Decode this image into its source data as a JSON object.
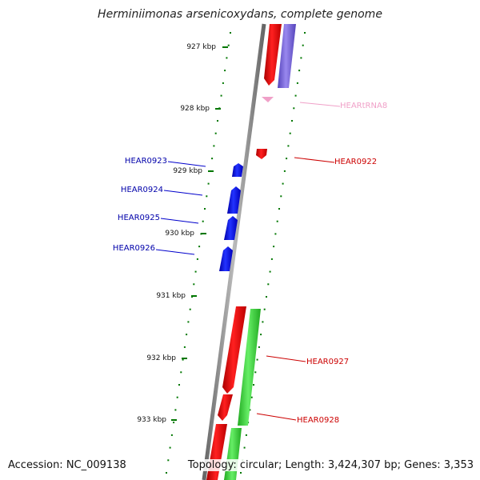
{
  "title": "Herminiimonas arsenicoxydans, complete genome",
  "accession_label": "Accession: NC_009138",
  "topology_label": "Topology: circular; Length: 3,424,307 bp; Genes: 3,353",
  "ticks": [
    "927 kbp",
    "928 kbp",
    "929 kbp",
    "930 kbp",
    "931 kbp",
    "932 kbp",
    "933 kbp"
  ],
  "genes": [
    {
      "label": "HEARtRNA8",
      "color": "#f0a0c8"
    },
    {
      "label": "HEAR0922",
      "color": "#cc0000"
    },
    {
      "label": "HEAR0923",
      "color": "#0000aa"
    },
    {
      "label": "HEAR0924",
      "color": "#0000aa"
    },
    {
      "label": "HEAR0925",
      "color": "#0000aa"
    },
    {
      "label": "HEAR0926",
      "color": "#0000aa"
    },
    {
      "label": "HEAR0927",
      "color": "#cc0000"
    },
    {
      "label": "HEAR0928",
      "color": "#cc0000"
    }
  ],
  "colors": {
    "backbone": "#888888",
    "tick": "#007700",
    "forward_gene": "#ee0000",
    "reverse_gene": "#0000ee",
    "cds_track": "#33cc33",
    "purple_track": "#7766dd",
    "trna": "#f0a0c8"
  }
}
